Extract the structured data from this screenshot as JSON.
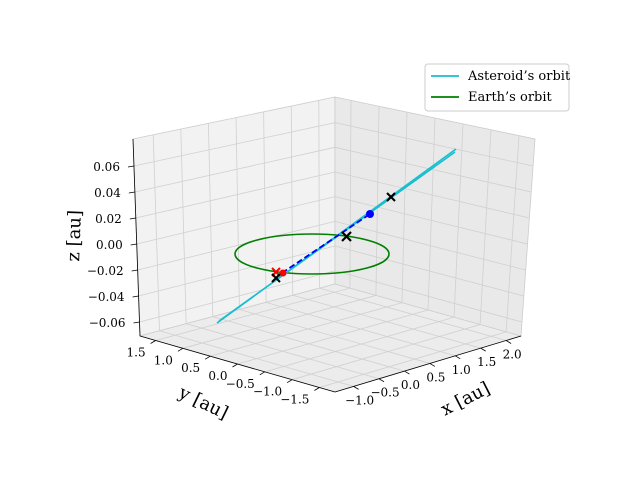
{
  "chart_data": {
    "type": "line",
    "projection": "3d",
    "legend_position": "top-right",
    "grid": true,
    "axes": {
      "x": {
        "label": "x [au]",
        "range": [
          -1.0,
          2.0
        ],
        "ticks": [
          "−1.0",
          "−0.5",
          "0.0",
          "0.5",
          "1.0",
          "1.5",
          "2.0"
        ]
      },
      "y": {
        "label": "y [au]",
        "range": [
          -1.5,
          1.5
        ],
        "ticks": [
          "1.5",
          "1.0",
          "0.5",
          "0.0",
          "−0.5",
          "−1.0",
          "−1.5"
        ]
      },
      "z": {
        "label": "z [au]",
        "range": [
          -0.06,
          0.06
        ],
        "ticks": [
          "0.06",
          "0.04",
          "0.02",
          "0.00",
          "−0.02",
          "−0.04",
          "−0.06"
        ]
      }
    },
    "legend": [
      {
        "name": "Asteroid’s orbit",
        "color": "#17becf"
      },
      {
        "name": "Earth’s orbit",
        "color": "#008000"
      }
    ],
    "series": [
      {
        "name": "Asteroid’s orbit",
        "color": "#17becf",
        "style": "solid"
      },
      {
        "name": "Earth’s orbit",
        "color": "#008000",
        "style": "solid",
        "center": [
          0,
          0,
          0
        ],
        "radius_au": 1.0
      },
      {
        "style": "dashed",
        "color": "#0000ff"
      }
    ],
    "markers": [
      {
        "symbol": "circle",
        "color": "#0000ff"
      },
      {
        "symbol": "circle",
        "color": "#ff0000"
      },
      {
        "symbol": "cross",
        "color": "#ff0000"
      },
      {
        "symbol": "cross",
        "color": "#000000"
      },
      {
        "symbol": "cross",
        "color": "#000000"
      },
      {
        "symbol": "cross",
        "color": "#000000"
      }
    ]
  }
}
